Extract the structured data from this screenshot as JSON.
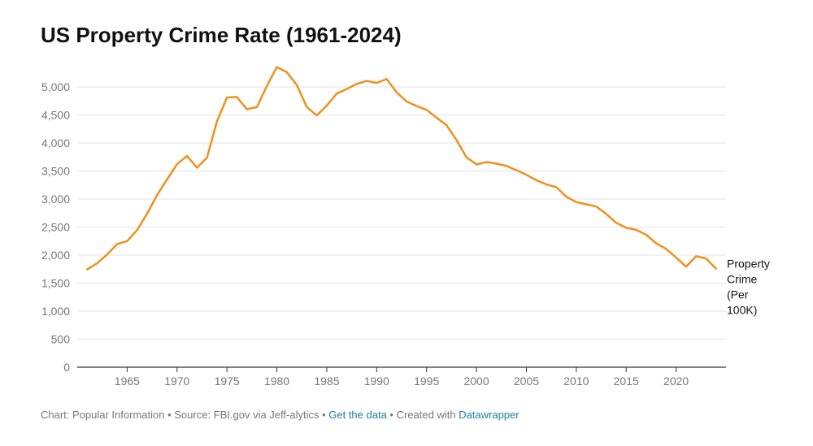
{
  "title": "US Property Crime Rate (1961-2024)",
  "chart_data": {
    "type": "line",
    "title": "US Property Crime Rate (1961-2024)",
    "xlabel": "",
    "ylabel": "",
    "xlim": [
      1960,
      2025
    ],
    "ylim": [
      0,
      5000
    ],
    "yticks": [
      0,
      500,
      1000,
      1500,
      2000,
      2500,
      3000,
      3500,
      4000,
      4500,
      5000
    ],
    "ytick_labels": [
      "0",
      "500",
      "1,000",
      "1,500",
      "2,000",
      "2,500",
      "3,000",
      "3,500",
      "4,000",
      "4,500",
      "5,000"
    ],
    "xticks": [
      1965,
      1970,
      1975,
      1980,
      1985,
      1990,
      1995,
      2000,
      2005,
      2010,
      2015,
      2020
    ],
    "xtick_labels": [
      "1965",
      "1970",
      "1975",
      "1980",
      "1985",
      "1990",
      "1995",
      "2000",
      "2005",
      "2010",
      "2015",
      "2020"
    ],
    "grid": true,
    "series": [
      {
        "name": "Property Crime (Per 100K)",
        "label_lines": [
          "Property",
          "Crime",
          "(Per",
          "100K)"
        ],
        "color": "#f0901c",
        "x": [
          1961,
          1962,
          1963,
          1964,
          1965,
          1966,
          1967,
          1968,
          1969,
          1970,
          1971,
          1972,
          1973,
          1974,
          1975,
          1976,
          1977,
          1978,
          1979,
          1980,
          1981,
          1982,
          1983,
          1984,
          1985,
          1986,
          1987,
          1988,
          1989,
          1990,
          1991,
          1992,
          1993,
          1994,
          1995,
          1996,
          1997,
          1998,
          1999,
          2000,
          2001,
          2002,
          2003,
          2004,
          2005,
          2006,
          2007,
          2008,
          2009,
          2010,
          2011,
          2012,
          2013,
          2014,
          2015,
          2016,
          2017,
          2018,
          2019,
          2020,
          2021,
          2022,
          2023,
          2024
        ],
        "values": [
          1747,
          1857,
          2012,
          2197,
          2249,
          2448,
          2737,
          3071,
          3351,
          3622,
          3769,
          3560,
          3737,
          4389,
          4811,
          4820,
          4601,
          4642,
          5017,
          5353,
          5264,
          5033,
          4641,
          4492,
          4666,
          4881,
          4963,
          5054,
          5107,
          5073,
          5140,
          4903,
          4741,
          4660,
          4591,
          4451,
          4317,
          4053,
          3744,
          3618,
          3659,
          3630,
          3591,
          3515,
          3432,
          3335,
          3263,
          3212,
          3041,
          2946,
          2906,
          2866,
          2733,
          2575,
          2487,
          2451,
          2362,
          2210,
          2110,
          1958,
          1793,
          1980,
          1940,
          1760
        ]
      }
    ]
  },
  "footer": {
    "chart_credit": "Chart: Popular Information",
    "separator": " • ",
    "source": "Source: FBI.gov via Jeff-alytics",
    "get_data": "Get the data",
    "created_with": "Created with",
    "tool": "Datawrapper"
  }
}
